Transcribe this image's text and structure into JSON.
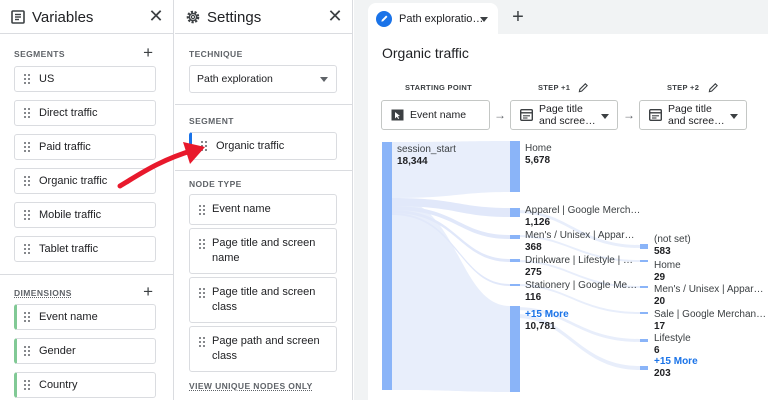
{
  "variables": {
    "title": "Variables",
    "segments_label": "SEGMENTS",
    "segments": [
      "US",
      "Direct traffic",
      "Paid traffic",
      "Organic traffic",
      "Mobile traffic",
      "Tablet traffic"
    ],
    "dimensions_label": "DIMENSIONS",
    "dimensions": [
      "Event name",
      "Gender",
      "Country"
    ]
  },
  "settings": {
    "title": "Settings",
    "technique_label": "TECHNIQUE",
    "technique_value": "Path exploration",
    "segment_label": "SEGMENT",
    "segment_value": "Organic traffic",
    "node_type_label": "NODE TYPE",
    "node_types": [
      "Event name",
      "Page title and screen name",
      "Page title and screen class",
      "Page path and screen class"
    ],
    "view_unique_label": "VIEW UNIQUE NODES ONLY"
  },
  "canvas": {
    "tab_label": "Path exploratio…",
    "viz_title": "Organic traffic",
    "starting_point": {
      "label": "STARTING POINT",
      "node": "Event name"
    },
    "step1": {
      "label": "STEP +1",
      "node_line1": "Page title",
      "node_line2": "and scree…"
    },
    "step2": {
      "label": "STEP +2",
      "node_line1": "Page title",
      "node_line2": "and scree…"
    },
    "start_node": {
      "name": "session_start",
      "value": "18,344"
    },
    "step1_nodes": [
      {
        "name": "Home",
        "value": "5,678"
      },
      {
        "name": "Apparel | Google Merch…",
        "value": "1,126"
      },
      {
        "name": "Men's / Unisex | Appar…",
        "value": "368"
      },
      {
        "name": "Drinkware | Lifestyle | …",
        "value": "275"
      },
      {
        "name": "Stationery | Google Me…",
        "value": "116"
      },
      {
        "name": "+15 More",
        "value": "10,781"
      }
    ],
    "step2_nodes": [
      {
        "name": "(not set)",
        "value": "583"
      },
      {
        "name": "Home",
        "value": "29"
      },
      {
        "name": "Men's / Unisex | Appar…",
        "value": "20"
      },
      {
        "name": "Sale | Google Merchan…",
        "value": "17"
      },
      {
        "name": "Lifestyle",
        "value": "6"
      },
      {
        "name": "+15 More",
        "value": "203"
      }
    ]
  },
  "colors": {
    "node_blue": "#8ab4f8",
    "accent_blue": "#1a73e8",
    "dimension_green": "#81c995",
    "annotation_red": "#e8192c"
  }
}
